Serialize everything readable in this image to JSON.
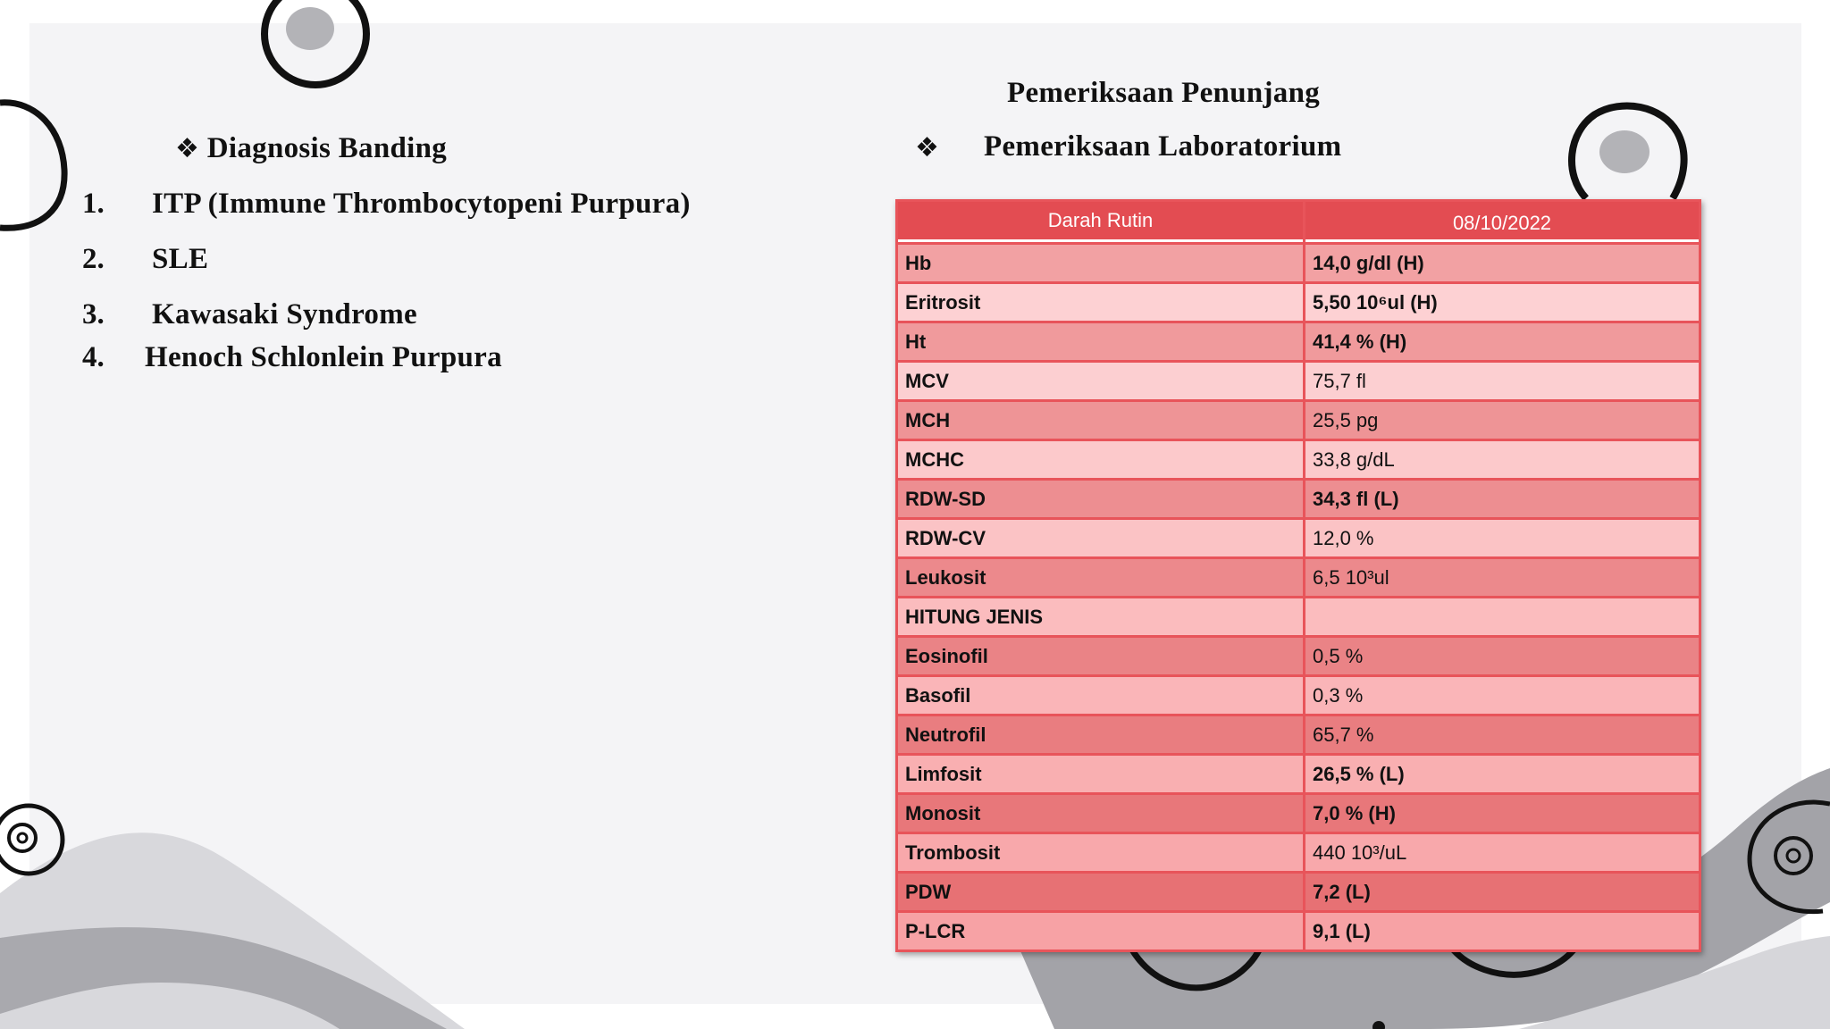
{
  "diagnosis": {
    "heading": "Diagnosis Banding",
    "bullet": "❖",
    "items": [
      {
        "num": "1.",
        "text": "ITP (Immune Thrombocytopeni Purpura)"
      },
      {
        "num": "2.",
        "text": "SLE"
      },
      {
        "num": "3.",
        "text": "Kawasaki Syndrome"
      },
      {
        "num": "4.",
        "text": "Henoch Schlonlein Purpura"
      }
    ]
  },
  "exam": {
    "title": "Pemeriksaan Penunjang",
    "bullet": "❖",
    "subtitle": "Pemeriksaan Laboratorium"
  },
  "table": {
    "headers": [
      "Darah Rutin",
      "08/10/2022"
    ],
    "rows": [
      {
        "label": "Hb",
        "value": "14,0 g/dl  (H)"
      },
      {
        "label": "Eritrosit",
        "value": "5,50 10⁶ul (H)"
      },
      {
        "label": "Ht",
        "value": "41,4 %  (H)"
      },
      {
        "label": "MCV",
        "value": "75,7 fl"
      },
      {
        "label": "MCH",
        "value": "25,5 pg"
      },
      {
        "label": "MCHC",
        "value": "33,8 g/dL"
      },
      {
        "label": "RDW-SD",
        "value": "34,3 fl (L)"
      },
      {
        "label": "RDW-CV",
        "value": "12,0 %"
      },
      {
        "label": "Leukosit",
        "value": "6,5 10³ul"
      },
      {
        "label": "HITUNG JENIS",
        "value": ""
      },
      {
        "label": "Eosinofil",
        "value": "0,5 %"
      },
      {
        "label": "Basofil",
        "value": "0,3 %"
      },
      {
        "label": "Neutrofil",
        "value": "65,7 %"
      },
      {
        "label": "Limfosit",
        "value": "26,5 % (L)"
      },
      {
        "label": "Monosit",
        "value": "7,0 %  (H)"
      },
      {
        "label": "Trombosit",
        "value": "440 10³/uL"
      },
      {
        "label": "PDW",
        "value": "7,2 (L)"
      },
      {
        "label": "P-LCR",
        "value": "9,1 (L)"
      }
    ]
  }
}
